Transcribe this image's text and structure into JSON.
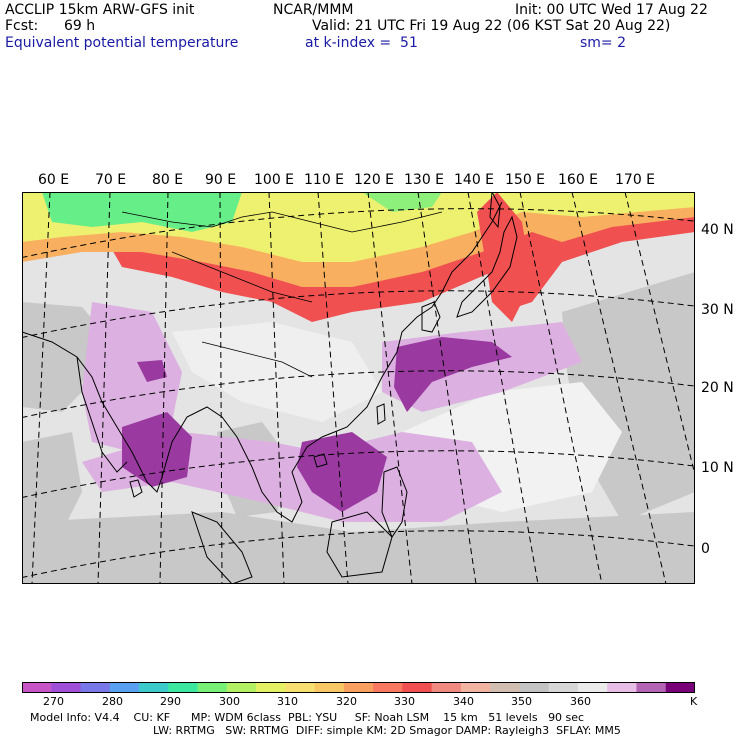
{
  "header": {
    "model": "ACCLIP 15km ARW-GFS init",
    "org": "NCAR/MMM",
    "init": "Init: 00 UTC Wed 17 Aug 22",
    "fcst_label": "Fcst:",
    "fcst_value": "69 h",
    "valid": "Valid: 21 UTC Fri 19 Aug 22 (06 KST Sat 20 Aug 22)",
    "field": "Equivalent potential temperature",
    "level": "at k-index =  51",
    "smooth": "sm= 2"
  },
  "map": {
    "lon_labels": [
      "60 E",
      "70 E",
      "80 E",
      "90 E",
      "100 E",
      "110 E",
      "120 E",
      "130 E",
      "140 E",
      "150 E",
      "160 E",
      "170 E"
    ],
    "lat_labels": [
      "40 N",
      "30 N",
      "20 N",
      "10 N",
      "0"
    ],
    "colors": {
      "green": "#66ee88",
      "yellow": "#eef070",
      "orange": "#f8b060",
      "red": "#f05050",
      "gray": "#c8c8c8",
      "lightgray": "#dcdcdc",
      "white": "#f0f0f0",
      "lilac": "#dcb0e0",
      "purple": "#9a3aa0"
    }
  },
  "colorbar": {
    "colors": [
      "#c855c8",
      "#a050d8",
      "#7878e8",
      "#5aa0f0",
      "#3ccaca",
      "#3ce8a0",
      "#78f078",
      "#b4f064",
      "#e6f064",
      "#f8e070",
      "#f8c864",
      "#f8a060",
      "#f87860",
      "#f05050",
      "#f08a80",
      "#f0b4a0",
      "#d2beb0",
      "#c3c3c3",
      "#d7d7d7",
      "#ebebeb",
      "#e6bee6",
      "#b464b4",
      "#780078"
    ],
    "labels": [
      "270",
      "280",
      "290",
      "300",
      "310",
      "320",
      "330",
      "340",
      "350",
      "360",
      "K"
    ],
    "unit": "K"
  },
  "footer": {
    "line1": "Model Info: V4.4    CU: KF      MP: WDM 6class  PBL: YSU     SF: Noah LSM    15 km   51 levels   90 sec",
    "line2": "LW: RRTMG   SW: RRTMG  DIFF: simple KM: 2D Smagor DAMP: Rayleigh3  SFLAY: MM5"
  }
}
